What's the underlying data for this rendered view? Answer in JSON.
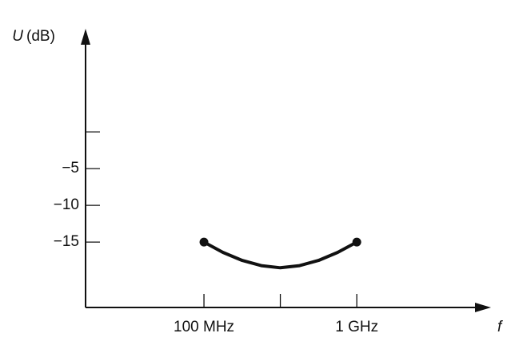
{
  "chart_data": {
    "type": "line",
    "ylabel_symbol": "U",
    "ylabel_unit": "(dB)",
    "xlabel": "f",
    "xscale": "log",
    "xlim": [
      16800000,
      7200000000
    ],
    "ylim": [
      -23.9,
      13.6
    ],
    "xticks": [
      {
        "value": 100000000,
        "label": "100 MHz"
      },
      {
        "value": 1000000000,
        "label": "1 GHz"
      }
    ],
    "xticks_minor": [
      316000000
    ],
    "yticks": [
      {
        "value": -5,
        "label": "−5"
      },
      {
        "value": -10,
        "label": "−10"
      },
      {
        "value": -15,
        "label": "−15"
      }
    ],
    "yticks_minor": [
      0
    ],
    "color": "#111111",
    "x": [
      100000000,
      133000000,
      178000000,
      237000000,
      316000000,
      422000000,
      562000000,
      750000000,
      1000000000
    ],
    "values": [
      -15,
      -16.4,
      -17.5,
      -18.2,
      -18.5,
      -18.2,
      -17.5,
      -16.4,
      -15
    ],
    "markers": {
      "x": [
        100000000,
        1000000000
      ],
      "values": [
        -15,
        -15
      ]
    }
  }
}
